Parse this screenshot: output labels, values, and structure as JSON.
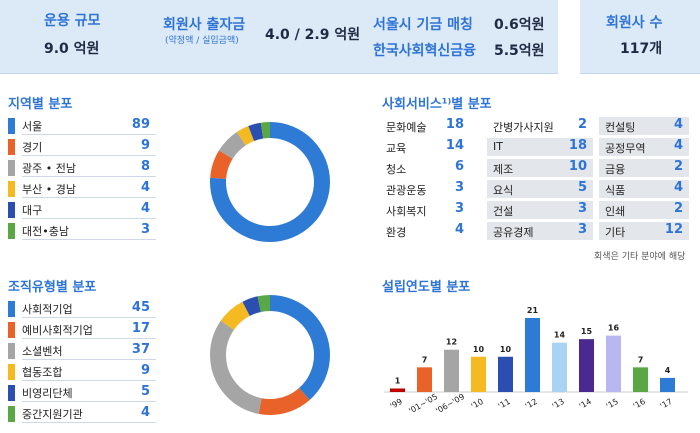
{
  "summary": {
    "scale_label": "운용 규모",
    "scale_value": "9.0 억원",
    "capital_label": "회원사 출자금",
    "capital_sub": "(약정액 / 실입금액)",
    "capital_value": "4.0 / 2.9 억원",
    "seoul_label": "서울시 기금 매칭",
    "seoul_value": "0.6억원",
    "korea_label": "한국사회혁신금융",
    "korea_value": "5.5억원",
    "members_label": "회원사 수",
    "members_value": "117개"
  },
  "region": {
    "title": "지역별 분포",
    "items": [
      {
        "label": "서울",
        "value": "89",
        "color": "#2e7bd6"
      },
      {
        "label": "경기",
        "value": "9",
        "color": "#e8622a"
      },
      {
        "label": "광주 • 전남",
        "value": "8",
        "color": "#a5a5a5"
      },
      {
        "label": "부산 • 경남",
        "value": "4",
        "color": "#f5b921"
      },
      {
        "label": "대구",
        "value": "4",
        "color": "#2a4fb0"
      },
      {
        "label": "대전•충남",
        "value": "3",
        "color": "#5aa845"
      }
    ]
  },
  "service": {
    "title": "사회서비스¹⁾별 분포",
    "note": "회색은 기타 분야에 해당",
    "columns": [
      [
        {
          "label": "문화예술",
          "value": "18",
          "grey": false
        },
        {
          "label": "교육",
          "value": "14",
          "grey": false
        },
        {
          "label": "청소",
          "value": "6",
          "grey": false
        },
        {
          "label": "관광운동",
          "value": "3",
          "grey": false
        },
        {
          "label": "사회복지",
          "value": "3",
          "grey": false
        },
        {
          "label": "환경",
          "value": "4",
          "grey": false
        }
      ],
      [
        {
          "label": "간병가사지원",
          "value": "2",
          "grey": false
        },
        {
          "label": "IT",
          "value": "18",
          "grey": true
        },
        {
          "label": "제조",
          "value": "10",
          "grey": true
        },
        {
          "label": "요식",
          "value": "5",
          "grey": true
        },
        {
          "label": "건설",
          "value": "3",
          "grey": true
        },
        {
          "label": "공유경제",
          "value": "3",
          "grey": true
        }
      ],
      [
        {
          "label": "컨설팅",
          "value": "4",
          "grey": true
        },
        {
          "label": "공정무역",
          "value": "4",
          "grey": true
        },
        {
          "label": "금융",
          "value": "2",
          "grey": true
        },
        {
          "label": "식품",
          "value": "4",
          "grey": true
        },
        {
          "label": "인쇄",
          "value": "2",
          "grey": true
        },
        {
          "label": "기타",
          "value": "12",
          "grey": true
        }
      ]
    ]
  },
  "org": {
    "title": "조직유형별 분포",
    "items": [
      {
        "label": "사회적기업",
        "value": "45",
        "color": "#2e7bd6"
      },
      {
        "label": "예비사회적기업",
        "value": "17",
        "color": "#e8622a"
      },
      {
        "label": "소셜벤처",
        "value": "37",
        "color": "#a5a5a5"
      },
      {
        "label": "협동조합",
        "value": "9",
        "color": "#f5b921"
      },
      {
        "label": "비영리단체",
        "value": "5",
        "color": "#2a4fb0"
      },
      {
        "label": "중간지원기관",
        "value": "4",
        "color": "#5aa845"
      }
    ]
  },
  "chart_data": [
    {
      "type": "pie",
      "title": "지역별 분포",
      "categories": [
        "서울",
        "경기",
        "광주 • 전남",
        "부산 • 경남",
        "대구",
        "대전•충남"
      ],
      "values": [
        89,
        9,
        8,
        4,
        4,
        3
      ],
      "colors": [
        "#2e7bd6",
        "#e8622a",
        "#a5a5a5",
        "#f5b921",
        "#2a4fb0",
        "#5aa845"
      ],
      "donut": true
    },
    {
      "type": "pie",
      "title": "조직유형별 분포",
      "categories": [
        "사회적기업",
        "예비사회적기업",
        "소셜벤처",
        "협동조합",
        "비영리단체",
        "중간지원기관"
      ],
      "values": [
        45,
        17,
        37,
        9,
        5,
        4
      ],
      "colors": [
        "#2e7bd6",
        "#e8622a",
        "#a5a5a5",
        "#f5b921",
        "#2a4fb0",
        "#5aa845"
      ],
      "donut": true
    },
    {
      "type": "bar",
      "title": "설립연도별 분포",
      "categories": [
        "'99",
        "'01~'05",
        "'06~'09",
        "'10",
        "'11",
        "'12",
        "'13",
        "'14",
        "'15",
        "'16",
        "'17"
      ],
      "values": [
        1,
        7,
        12,
        10,
        10,
        21,
        14,
        15,
        16,
        7,
        4
      ],
      "colors": [
        "#c00000",
        "#e8622a",
        "#a5a5a5",
        "#f5b921",
        "#2a4fb0",
        "#2e7bd6",
        "#a9d3f5",
        "#4b2a8f",
        "#b9b7f0",
        "#5aa845",
        "#2e7bd6"
      ],
      "ylim": [
        0,
        24
      ],
      "grid": false,
      "xlabel": "",
      "ylabel": ""
    }
  ]
}
